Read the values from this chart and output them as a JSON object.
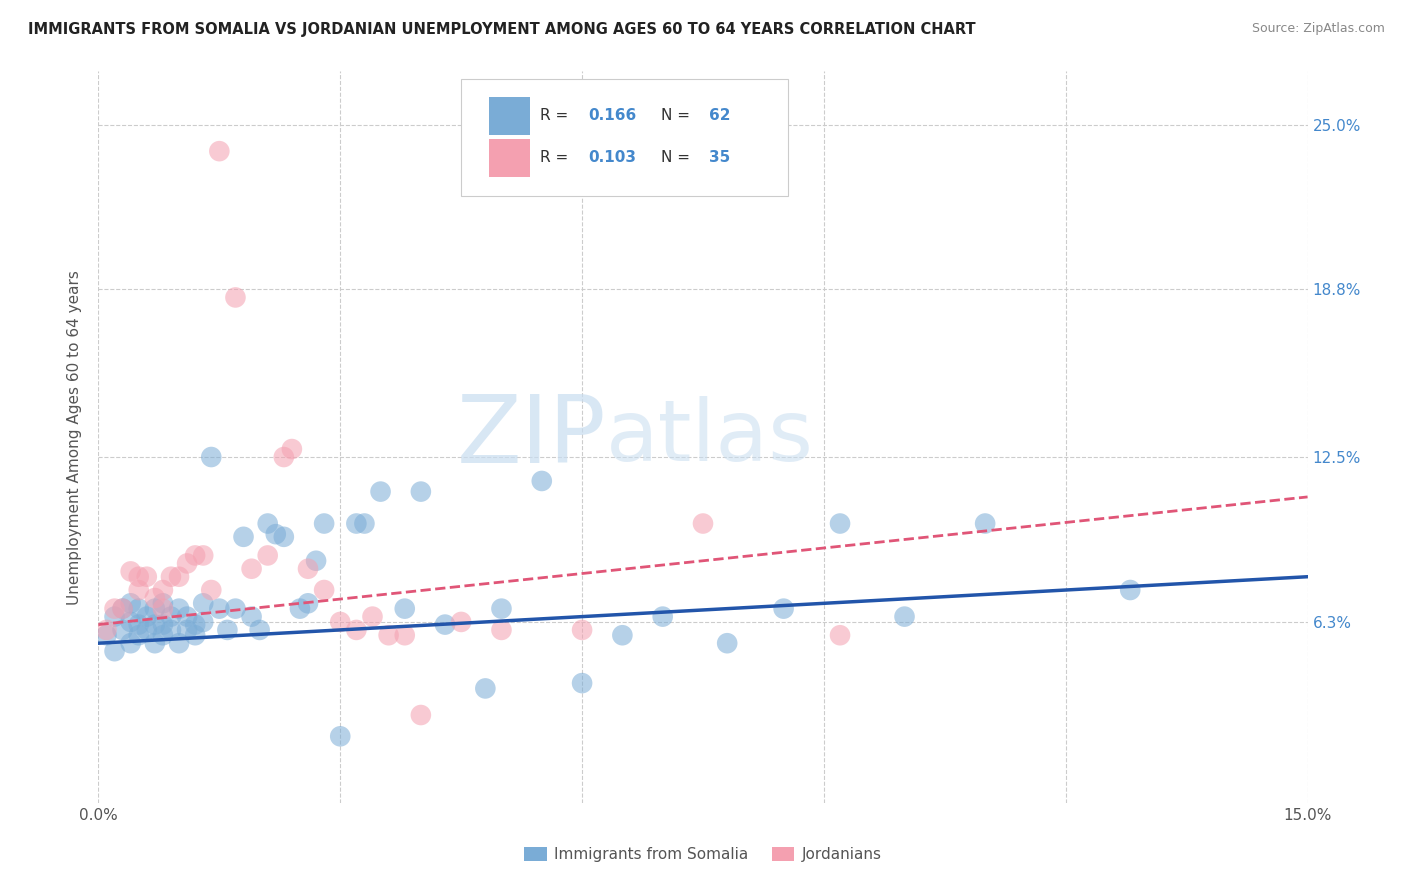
{
  "title": "IMMIGRANTS FROM SOMALIA VS JORDANIAN UNEMPLOYMENT AMONG AGES 60 TO 64 YEARS CORRELATION CHART",
  "source": "Source: ZipAtlas.com",
  "ylabel": "Unemployment Among Ages 60 to 64 years",
  "xlim": [
    0.0,
    0.15
  ],
  "ylim": [
    -0.005,
    0.27
  ],
  "x_ticks": [
    0.0,
    0.03,
    0.06,
    0.09,
    0.12,
    0.15
  ],
  "x_tick_labels": [
    "0.0%",
    "",
    "",
    "",
    "",
    "15.0%"
  ],
  "y_tick_labels_right": [
    "6.3%",
    "12.5%",
    "18.8%",
    "25.0%"
  ],
  "y_tick_values_right": [
    0.063,
    0.125,
    0.188,
    0.25
  ],
  "legend_label1": "Immigrants from Somalia",
  "legend_label2": "Jordanians",
  "color_blue": "#7aacd6",
  "color_pink": "#f4a0b0",
  "color_blue_line": "#2255aa",
  "color_pink_line": "#e05577",
  "color_blue_text": "#4488cc",
  "watermark_color": "#d8e8f0",
  "blue_scatter_x": [
    0.001,
    0.002,
    0.002,
    0.003,
    0.003,
    0.004,
    0.004,
    0.004,
    0.005,
    0.005,
    0.005,
    0.006,
    0.006,
    0.007,
    0.007,
    0.007,
    0.008,
    0.008,
    0.008,
    0.009,
    0.009,
    0.01,
    0.01,
    0.011,
    0.011,
    0.012,
    0.012,
    0.013,
    0.013,
    0.014,
    0.015,
    0.016,
    0.017,
    0.018,
    0.019,
    0.02,
    0.021,
    0.022,
    0.023,
    0.025,
    0.026,
    0.027,
    0.028,
    0.03,
    0.032,
    0.033,
    0.035,
    0.038,
    0.04,
    0.043,
    0.048,
    0.05,
    0.055,
    0.06,
    0.065,
    0.07,
    0.078,
    0.085,
    0.092,
    0.1,
    0.11,
    0.128
  ],
  "blue_scatter_y": [
    0.058,
    0.052,
    0.065,
    0.06,
    0.068,
    0.055,
    0.063,
    0.07,
    0.058,
    0.062,
    0.068,
    0.06,
    0.065,
    0.055,
    0.062,
    0.068,
    0.058,
    0.062,
    0.07,
    0.06,
    0.065,
    0.055,
    0.068,
    0.06,
    0.065,
    0.058,
    0.062,
    0.063,
    0.07,
    0.125,
    0.068,
    0.06,
    0.068,
    0.095,
    0.065,
    0.06,
    0.1,
    0.096,
    0.095,
    0.068,
    0.07,
    0.086,
    0.1,
    0.02,
    0.1,
    0.1,
    0.112,
    0.068,
    0.112,
    0.062,
    0.038,
    0.068,
    0.116,
    0.04,
    0.058,
    0.065,
    0.055,
    0.068,
    0.1,
    0.065,
    0.1,
    0.075
  ],
  "pink_scatter_x": [
    0.001,
    0.002,
    0.003,
    0.004,
    0.005,
    0.005,
    0.006,
    0.007,
    0.008,
    0.008,
    0.009,
    0.01,
    0.011,
    0.012,
    0.013,
    0.014,
    0.015,
    0.017,
    0.019,
    0.021,
    0.023,
    0.024,
    0.026,
    0.028,
    0.03,
    0.032,
    0.034,
    0.036,
    0.038,
    0.04,
    0.045,
    0.05,
    0.06,
    0.075,
    0.092
  ],
  "pink_scatter_y": [
    0.06,
    0.068,
    0.068,
    0.082,
    0.075,
    0.08,
    0.08,
    0.072,
    0.068,
    0.075,
    0.08,
    0.08,
    0.085,
    0.088,
    0.088,
    0.075,
    0.24,
    0.185,
    0.083,
    0.088,
    0.125,
    0.128,
    0.083,
    0.075,
    0.063,
    0.06,
    0.065,
    0.058,
    0.058,
    0.028,
    0.063,
    0.06,
    0.06,
    0.1,
    0.058
  ]
}
